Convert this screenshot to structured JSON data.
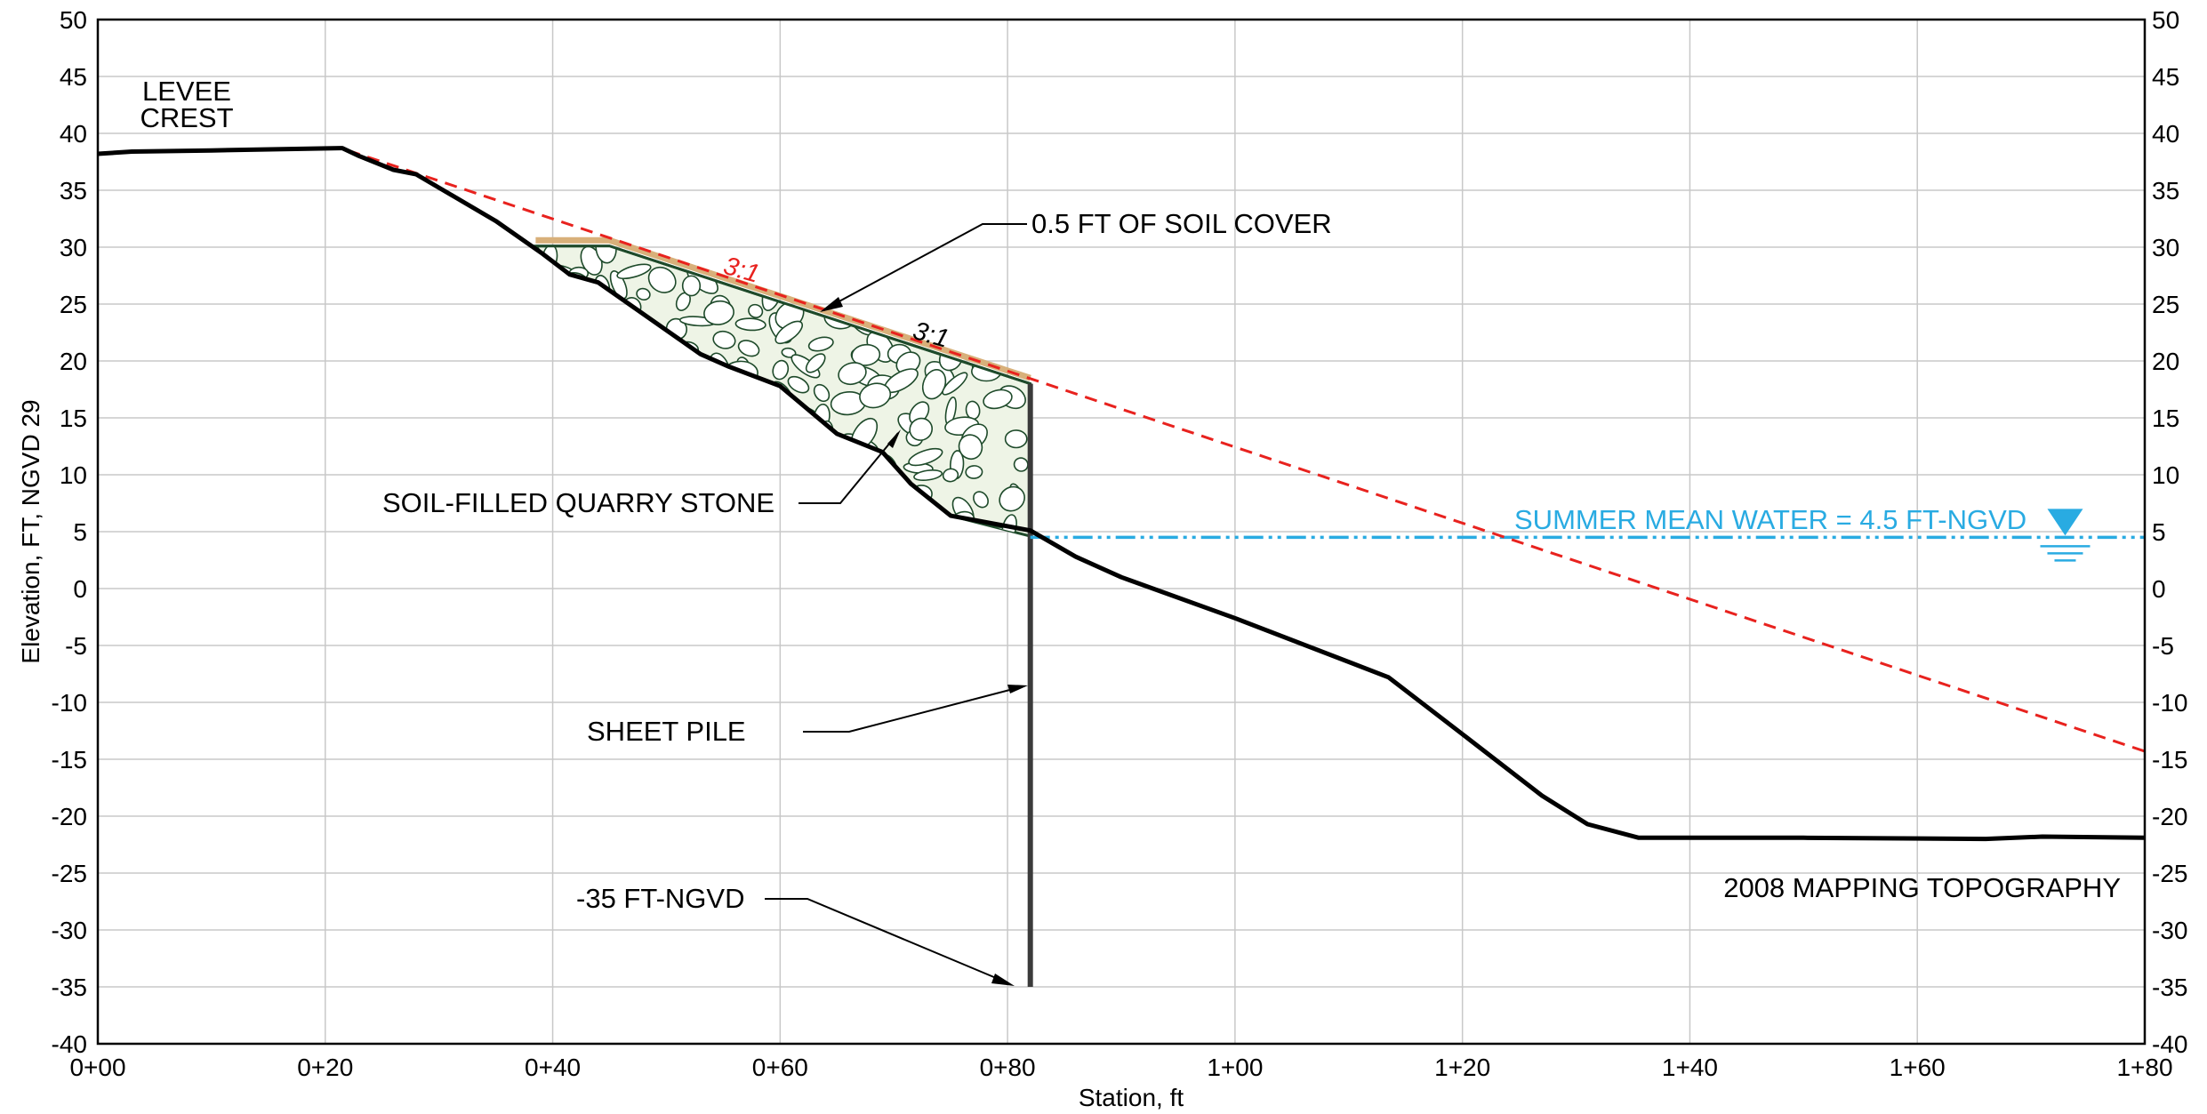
{
  "chart_data": {
    "type": "cross-section",
    "xlabel": "Station, ft",
    "ylabel": "Elevation, FT, NGVD 29",
    "xlim": [
      0,
      180
    ],
    "ylim": [
      -40,
      50
    ],
    "x_ticks": [
      {
        "value": 0,
        "label": "0+00"
      },
      {
        "value": 20,
        "label": "0+20"
      },
      {
        "value": 40,
        "label": "0+40"
      },
      {
        "value": 60,
        "label": "0+60"
      },
      {
        "value": 80,
        "label": "0+80"
      },
      {
        "value": 100,
        "label": "1+00"
      },
      {
        "value": 120,
        "label": "1+20"
      },
      {
        "value": 140,
        "label": "1+40"
      },
      {
        "value": 160,
        "label": "1+60"
      },
      {
        "value": 180,
        "label": "1+80"
      }
    ],
    "y_ticks": [
      50,
      45,
      40,
      35,
      30,
      25,
      20,
      15,
      10,
      5,
      0,
      -5,
      -10,
      -15,
      -20,
      -25,
      -30,
      -35,
      -40
    ],
    "grid": true,
    "ground_profile": [
      [
        0,
        38.2
      ],
      [
        3,
        38.4
      ],
      [
        10,
        38.5
      ],
      [
        21.5,
        38.7
      ],
      [
        23,
        38
      ],
      [
        26,
        36.8
      ],
      [
        28,
        36.4
      ],
      [
        35,
        32.3
      ],
      [
        39,
        29.5
      ],
      [
        41.5,
        27.6
      ],
      [
        44,
        26.9
      ],
      [
        53,
        20.6
      ],
      [
        55.5,
        19.5
      ],
      [
        60,
        17.8
      ],
      [
        65,
        13.6
      ],
      [
        69,
        12
      ],
      [
        71.5,
        9.2
      ],
      [
        75,
        6.4
      ],
      [
        82,
        5.1
      ],
      [
        86,
        2.8
      ],
      [
        90,
        1
      ],
      [
        100,
        -2.6
      ],
      [
        113.5,
        -7.8
      ],
      [
        120,
        -12.8
      ],
      [
        127,
        -18.2
      ],
      [
        131,
        -20.7
      ],
      [
        135.5,
        -21.9
      ],
      [
        150,
        -21.9
      ],
      [
        166,
        -22
      ],
      [
        171,
        -21.8
      ],
      [
        180,
        -21.9
      ]
    ],
    "dashed_3to1_line": {
      "from": [
        22,
        38.5
      ],
      "to": [
        180,
        -14.3
      ],
      "color": "#e8221e"
    },
    "stone_fill_polygon": [
      [
        38.5,
        30.1
      ],
      [
        45,
        30.1
      ],
      [
        82,
        18
      ],
      [
        82,
        4.6
      ],
      [
        75,
        6.4
      ],
      [
        71.5,
        9.2
      ],
      [
        69,
        12
      ],
      [
        65,
        13.6
      ],
      [
        60,
        17.8
      ],
      [
        55.5,
        19.5
      ],
      [
        53,
        20.6
      ],
      [
        44,
        26.9
      ],
      [
        41.5,
        27.6
      ],
      [
        39,
        29.5
      ]
    ],
    "soil_cover_top": [
      [
        38.5,
        30.6
      ],
      [
        45,
        30.6
      ],
      [
        82,
        18.5
      ]
    ],
    "sheet_pile": {
      "x": 82,
      "top": 18,
      "bottom": -35
    },
    "water_level": {
      "elevation": 4.5,
      "from_x": 82,
      "to_x": 180,
      "color": "#29abe2"
    },
    "annotations": {
      "levee_crest": [
        "LEVEE",
        "CREST"
      ],
      "soil_cover": "0.5 FT OF SOIL COVER",
      "stone": "SOIL-FILLED QUARRY STONE",
      "sheet_pile": "SHEET PILE",
      "pile_tip": "-35 FT-NGVD",
      "water": "SUMMER MEAN WATER = 4.5 FT-NGVD",
      "topo": "2008 MAPPING TOPOGRAPHY",
      "slope_red": "3:1",
      "slope_black": "3:1"
    }
  },
  "colors": {
    "ground": "#000000",
    "dashed": "#e8221e",
    "water": "#29abe2",
    "stone_outline": "#1e4a2a",
    "stone_fill": "#eef4e6",
    "soil_cover": "#d8b07a",
    "sheet_pile": "#3b3b3b"
  }
}
